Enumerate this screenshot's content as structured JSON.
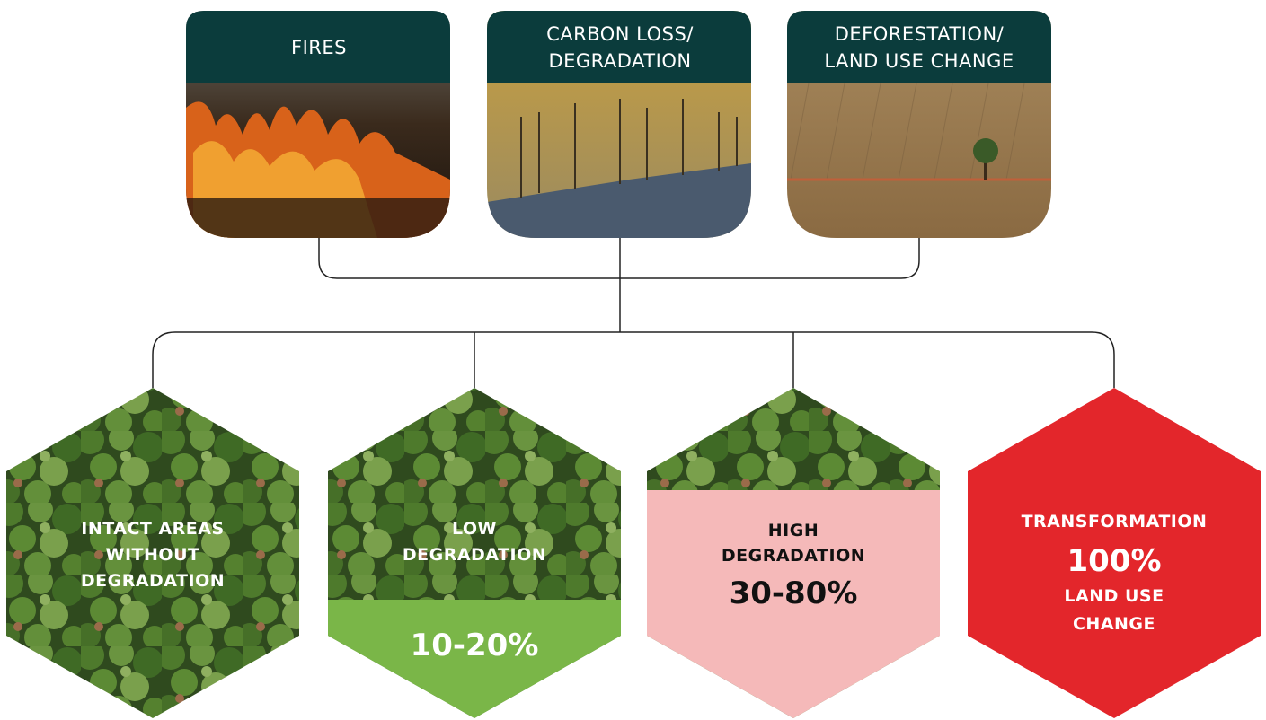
{
  "cards": [
    {
      "lines": [
        "FIRES"
      ]
    },
    {
      "lines": [
        "CARBON LOSS/",
        "DEGRADATION"
      ]
    },
    {
      "lines": [
        "DEFORESTATION/",
        "LAND USE CHANGE"
      ]
    }
  ],
  "hexagons": [
    {
      "lines": [
        "INTACT AREAS",
        "WITHOUT",
        "DEGRADATION"
      ]
    },
    {
      "lines": [
        "LOW",
        "DEGRADATION"
      ],
      "percent": "10-20%"
    },
    {
      "lines": [
        "HIGH",
        "DEGRADATION"
      ],
      "percent": "30-80%"
    },
    {
      "lines": [
        "TRANSFORMATION"
      ],
      "percent": "100%",
      "lines_after": [
        "LAND USE",
        "CHANGE"
      ]
    }
  ]
}
